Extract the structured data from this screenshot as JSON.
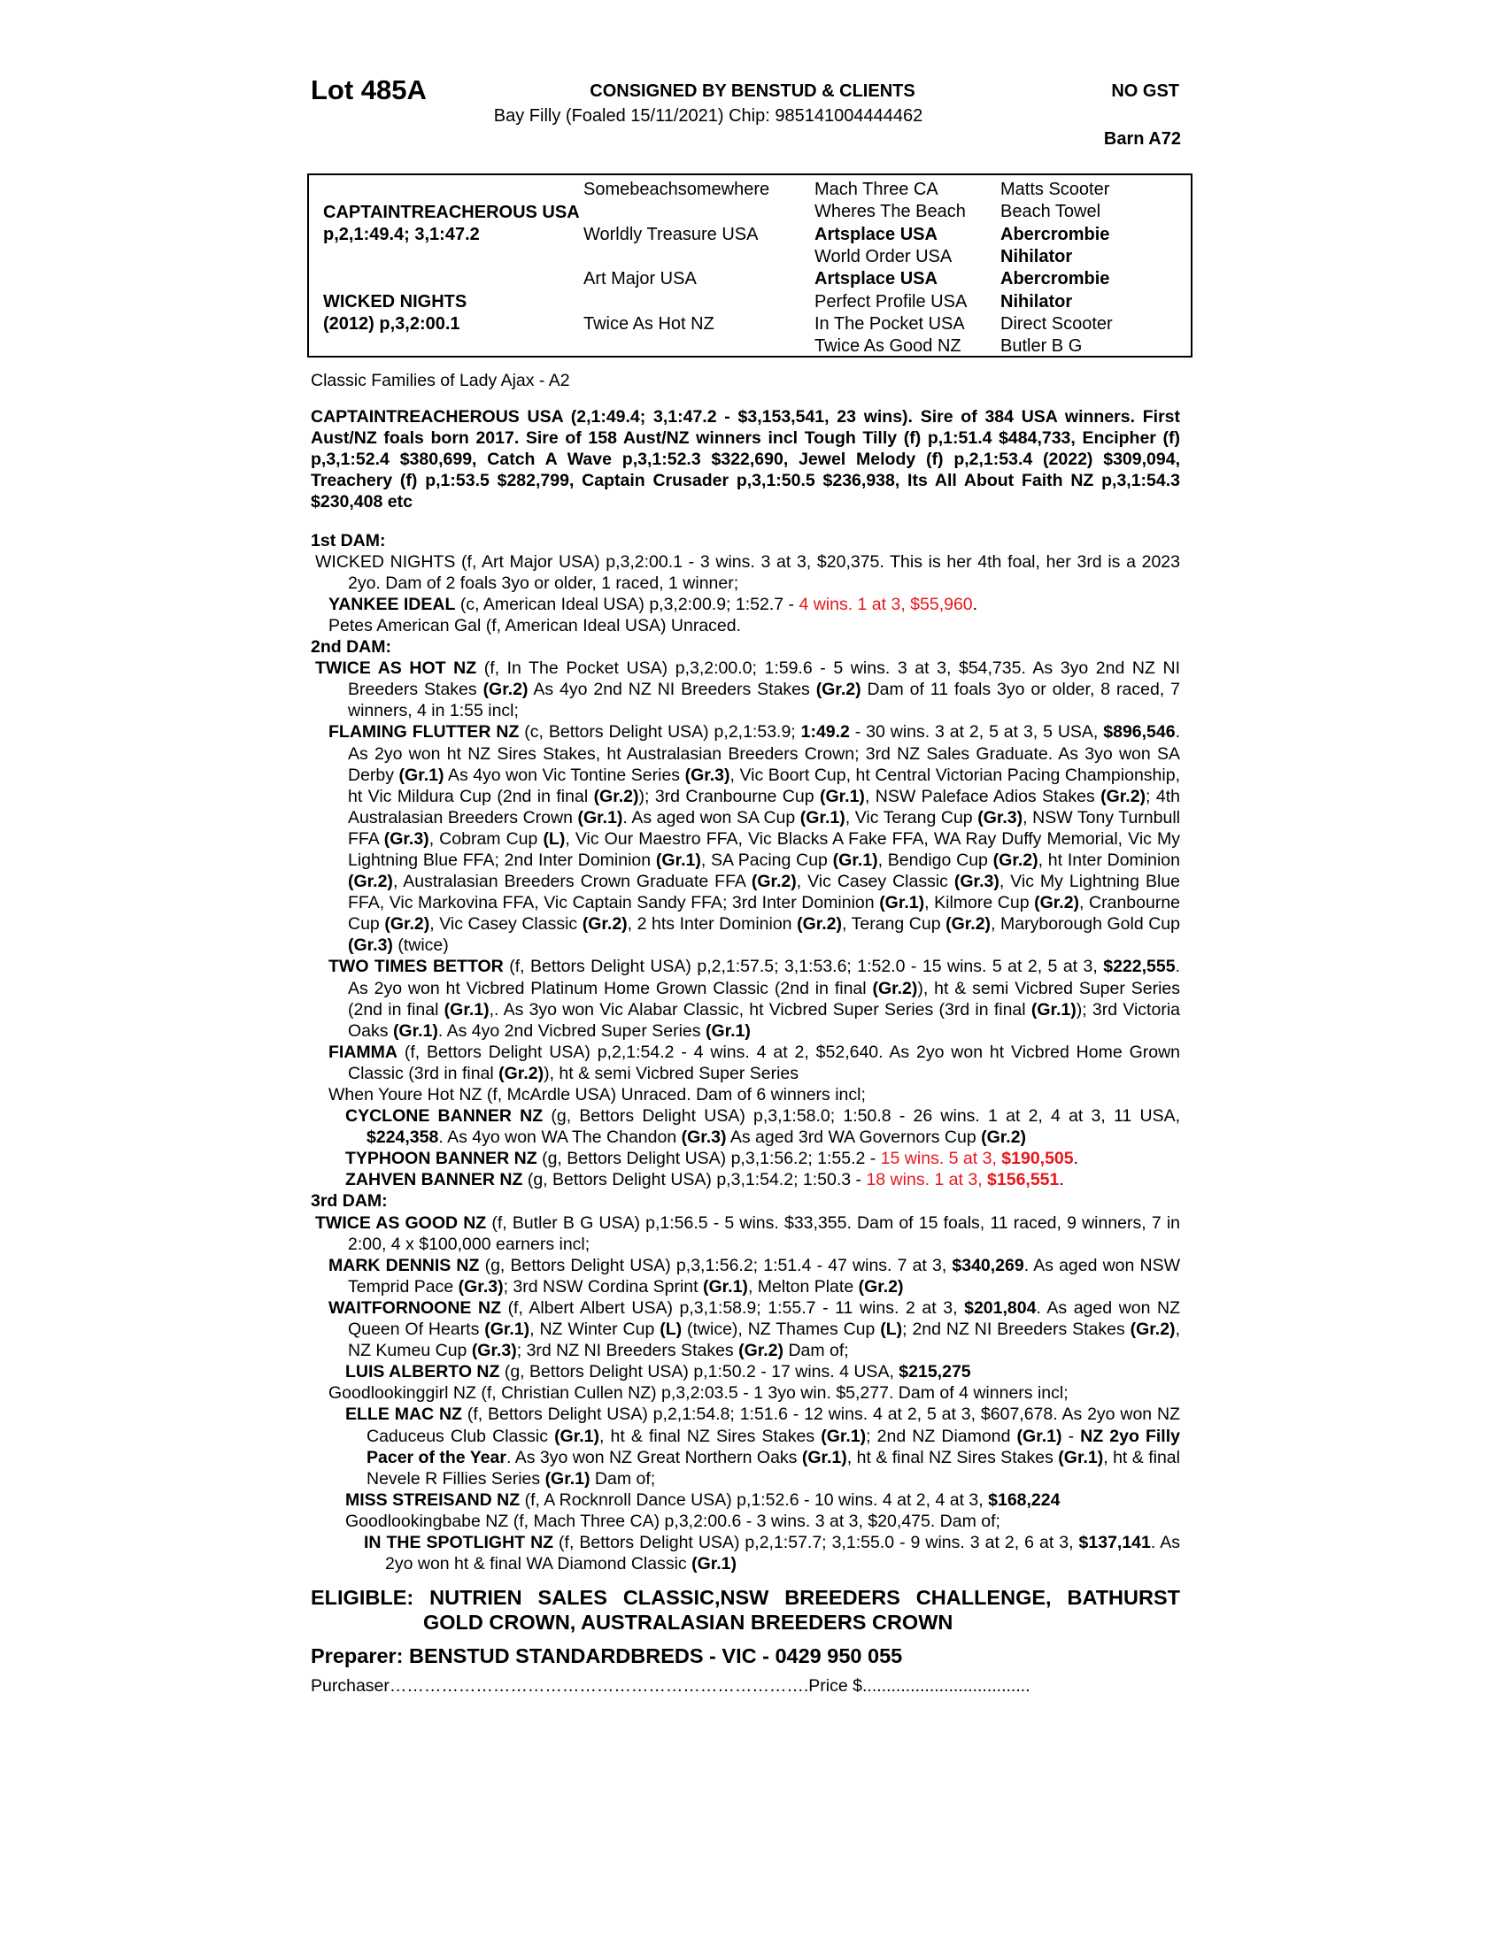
{
  "header": {
    "lot": "Lot 485A",
    "consigned": "CONSIGNED BY BENSTUD & CLIENTS",
    "description": "Bay Filly (Foaled 15/11/2021) Chip: 985141004444462",
    "gst": "NO GST",
    "barn": "Barn A72"
  },
  "pedigree": {
    "sire": {
      "name": "CAPTAINTREACHEROUS USA",
      "record": "p,2,1:49.4; 3,1:47.2"
    },
    "dam": {
      "name": "WICKED NIGHTS",
      "record": "(2012) p,3,2:00.1"
    },
    "gen2": [
      "Somebeachsomewhere",
      "Worldly Treasure USA",
      "Art Major USA",
      "Twice As Hot NZ"
    ],
    "gen3": [
      {
        "name": "Mach Three CA",
        "bold": false
      },
      {
        "name": "Wheres The Beach",
        "bold": false
      },
      {
        "name": "Artsplace USA",
        "bold": true
      },
      {
        "name": "World Order USA",
        "bold": false
      },
      {
        "name": "Artsplace USA",
        "bold": true
      },
      {
        "name": "Perfect Profile USA",
        "bold": false
      },
      {
        "name": "In The Pocket USA",
        "bold": false
      },
      {
        "name": "Twice As Good NZ",
        "bold": false
      }
    ],
    "gen4": [
      {
        "name": "Matts Scooter",
        "bold": false
      },
      {
        "name": "Beach Towel",
        "bold": false
      },
      {
        "name": "Abercrombie",
        "bold": true
      },
      {
        "name": "Nihilator",
        "bold": true
      },
      {
        "name": "Abercrombie",
        "bold": true
      },
      {
        "name": "Nihilator",
        "bold": true
      },
      {
        "name": "Direct Scooter",
        "bold": false
      },
      {
        "name": "Butler B G",
        "bold": false
      }
    ]
  },
  "family": "Classic Families of Lady Ajax - A2",
  "sire_paragraph": "CAPTAINTREACHEROUS USA (2,1:49.4; 3,1:47.2 - $3,153,541, 23 wins). Sire of 384 USA winners. First Aust/NZ foals born 2017. Sire of 158 Aust/NZ winners incl Tough Tilly (f) p,1:51.4 $484,733, Encipher (f) p,3,1:52.4 $380,699, Catch A Wave p,3,1:52.3 $322,690, Jewel Melody (f) p,2,1:53.4 (2022) $309,094, Treachery (f) p,1:53.5 $282,799, Captain Crusader p,3,1:50.5 $236,938, Its All About Faith NZ p,3,1:54.3 $230,408 etc",
  "sections": [
    {
      "heading": "1st DAM:",
      "entries": [
        {
          "level": 0,
          "segs": [
            {
              "t": "WICKED NIGHTS (f, Art Major USA) p,3,2:00.1 - 3 wins. 3 at 3, $20,375. This is her 4th foal, her 3rd is a 2023 2yo. Dam of 2 foals 3yo or older, 1 raced, 1 winner;",
              "s": ""
            }
          ]
        },
        {
          "level": 1,
          "segs": [
            {
              "t": "YANKEE IDEAL",
              "s": "b"
            },
            {
              "t": " (c, American Ideal USA) p,3,2:00.9; 1:52.7 - ",
              "s": ""
            },
            {
              "t": "4 wins. 1 at 3, $55,960",
              "s": "r"
            },
            {
              "t": ".",
              "s": ""
            }
          ]
        },
        {
          "level": 1,
          "segs": [
            {
              "t": "Petes American Gal (f, American Ideal USA) Unraced.",
              "s": ""
            }
          ]
        }
      ]
    },
    {
      "heading": "2nd DAM:",
      "entries": [
        {
          "level": 0,
          "segs": [
            {
              "t": "TWICE AS HOT NZ",
              "s": "b"
            },
            {
              "t": " (f, In The Pocket USA) p,3,2:00.0; 1:59.6 - 5 wins. 3 at 3, $54,735. As 3yo 2nd NZ NI Breeders Stakes ",
              "s": ""
            },
            {
              "t": "(Gr.2)",
              "s": "b"
            },
            {
              "t": " As 4yo 2nd NZ NI Breeders Stakes ",
              "s": ""
            },
            {
              "t": "(Gr.2)",
              "s": "b"
            },
            {
              "t": " Dam of 11 foals 3yo or older, 8 raced, 7 winners, 4 in 1:55 incl;",
              "s": ""
            }
          ]
        },
        {
          "level": 1,
          "segs": [
            {
              "t": "FLAMING FLUTTER NZ",
              "s": "b"
            },
            {
              "t": " (c, Bettors Delight USA) p,2,1:53.9; ",
              "s": ""
            },
            {
              "t": "1:49.2",
              "s": "b"
            },
            {
              "t": " - 30 wins. 3 at 2, 5 at 3, 5 USA, ",
              "s": ""
            },
            {
              "t": "$896,546",
              "s": "b"
            },
            {
              "t": ". As 2yo won ht NZ Sires Stakes, ht Australasian Breeders Crown; 3rd NZ Sales Graduate. As 3yo won SA Derby ",
              "s": ""
            },
            {
              "t": "(Gr.1)",
              "s": "b"
            },
            {
              "t": " As 4yo won Vic Tontine Series ",
              "s": ""
            },
            {
              "t": "(Gr.3)",
              "s": "b"
            },
            {
              "t": ", Vic Boort Cup, ht Central Victorian Pacing Championship, ht Vic Mildura Cup (2nd in final ",
              "s": ""
            },
            {
              "t": "(Gr.2)",
              "s": "b"
            },
            {
              "t": "); 3rd Cranbourne Cup ",
              "s": ""
            },
            {
              "t": "(Gr.1)",
              "s": "b"
            },
            {
              "t": ", NSW Paleface Adios Stakes ",
              "s": ""
            },
            {
              "t": "(Gr.2)",
              "s": "b"
            },
            {
              "t": "; 4th Australasian Breeders Crown ",
              "s": ""
            },
            {
              "t": "(Gr.1)",
              "s": "b"
            },
            {
              "t": ". As aged won SA Cup ",
              "s": ""
            },
            {
              "t": "(Gr.1)",
              "s": "b"
            },
            {
              "t": ", Vic Terang Cup ",
              "s": ""
            },
            {
              "t": "(Gr.3)",
              "s": "b"
            },
            {
              "t": ", NSW Tony Turnbull FFA ",
              "s": ""
            },
            {
              "t": "(Gr.3)",
              "s": "b"
            },
            {
              "t": ", Cobram Cup ",
              "s": ""
            },
            {
              "t": "(L)",
              "s": "b"
            },
            {
              "t": ", Vic Our Maestro FFA, Vic Blacks A Fake FFA, WA Ray Duffy Memorial, Vic My Lightning Blue FFA; 2nd Inter Dominion ",
              "s": ""
            },
            {
              "t": "(Gr.1)",
              "s": "b"
            },
            {
              "t": ", SA Pacing Cup ",
              "s": ""
            },
            {
              "t": "(Gr.1)",
              "s": "b"
            },
            {
              "t": ", Bendigo Cup ",
              "s": ""
            },
            {
              "t": "(Gr.2)",
              "s": "b"
            },
            {
              "t": ", ht Inter Dominion ",
              "s": ""
            },
            {
              "t": "(Gr.2)",
              "s": "b"
            },
            {
              "t": ", Australasian Breeders Crown Graduate FFA ",
              "s": ""
            },
            {
              "t": "(Gr.2)",
              "s": "b"
            },
            {
              "t": ", Vic Casey Classic ",
              "s": ""
            },
            {
              "t": "(Gr.3)",
              "s": "b"
            },
            {
              "t": ", Vic My Lightning Blue FFA, Vic Markovina FFA, Vic Captain Sandy FFA; 3rd Inter Dominion ",
              "s": ""
            },
            {
              "t": "(Gr.1)",
              "s": "b"
            },
            {
              "t": ", Kilmore Cup ",
              "s": ""
            },
            {
              "t": "(Gr.2)",
              "s": "b"
            },
            {
              "t": ", Cranbourne Cup ",
              "s": ""
            },
            {
              "t": "(Gr.2)",
              "s": "b"
            },
            {
              "t": ", Vic Casey Classic ",
              "s": ""
            },
            {
              "t": "(Gr.2)",
              "s": "b"
            },
            {
              "t": ", 2 hts Inter Dominion ",
              "s": ""
            },
            {
              "t": "(Gr.2)",
              "s": "b"
            },
            {
              "t": ", Terang Cup ",
              "s": ""
            },
            {
              "t": "(Gr.2)",
              "s": "b"
            },
            {
              "t": ", Maryborough Gold Cup ",
              "s": ""
            },
            {
              "t": "(Gr.3)",
              "s": "b"
            },
            {
              "t": " (twice)",
              "s": ""
            }
          ]
        },
        {
          "level": 1,
          "segs": [
            {
              "t": "TWO TIMES BETTOR",
              "s": "b"
            },
            {
              "t": " (f, Bettors Delight USA) p,2,1:57.5; 3,1:53.6; 1:52.0 - 15 wins. 5 at 2, 5 at 3, ",
              "s": ""
            },
            {
              "t": "$222,555",
              "s": "b"
            },
            {
              "t": ". As 2yo won ht Vicbred Platinum Home Grown Classic (2nd in final ",
              "s": ""
            },
            {
              "t": "(Gr.2)",
              "s": "b"
            },
            {
              "t": "), ht & semi Vicbred Super Series (2nd in final ",
              "s": ""
            },
            {
              "t": "(Gr.1)",
              "s": "b"
            },
            {
              "t": ",. As 3yo won Vic Alabar Classic, ht Vicbred Super Series (3rd in final ",
              "s": ""
            },
            {
              "t": "(Gr.1)",
              "s": "b"
            },
            {
              "t": "); 3rd Victoria Oaks ",
              "s": ""
            },
            {
              "t": "(Gr.1)",
              "s": "b"
            },
            {
              "t": ". As 4yo 2nd Vicbred Super Series ",
              "s": ""
            },
            {
              "t": "(Gr.1)",
              "s": "b"
            }
          ]
        },
        {
          "level": 1,
          "segs": [
            {
              "t": "FIAMMA",
              "s": "b"
            },
            {
              "t": " (f, Bettors Delight USA) p,2,1:54.2 - 4 wins. 4 at 2, $52,640. As 2yo won ht Vicbred Home Grown Classic (3rd in final ",
              "s": ""
            },
            {
              "t": "(Gr.2)",
              "s": "b"
            },
            {
              "t": "), ht & semi Vicbred Super Series",
              "s": ""
            }
          ]
        },
        {
          "level": 1,
          "segs": [
            {
              "t": "When Youre Hot NZ (f, McArdle USA) Unraced. Dam of 6 winners incl;",
              "s": ""
            }
          ]
        },
        {
          "level": 2,
          "segs": [
            {
              "t": "CYCLONE BANNER NZ",
              "s": "b"
            },
            {
              "t": " (g, Bettors Delight USA) p,3,1:58.0; 1:50.8 - 26 wins. 1 at 2, 4 at 3, 11 USA, ",
              "s": ""
            },
            {
              "t": "$224,358",
              "s": "b"
            },
            {
              "t": ". As 4yo won WA The Chandon ",
              "s": ""
            },
            {
              "t": "(Gr.3)",
              "s": "b"
            },
            {
              "t": " As aged 3rd WA Governors Cup ",
              "s": ""
            },
            {
              "t": "(Gr.2)",
              "s": "b"
            }
          ]
        },
        {
          "level": 2,
          "segs": [
            {
              "t": "TYPHOON BANNER NZ",
              "s": "b"
            },
            {
              "t": " (g, Bettors Delight USA) p,3,1:56.2; 1:55.2 - ",
              "s": ""
            },
            {
              "t": "15 wins. 5 at 3, ",
              "s": "r"
            },
            {
              "t": "$190,505",
              "s": "rb"
            },
            {
              "t": ".",
              "s": ""
            }
          ]
        },
        {
          "level": 2,
          "segs": [
            {
              "t": "ZAHVEN BANNER NZ",
              "s": "b"
            },
            {
              "t": " (g, Bettors Delight USA) p,3,1:54.2; 1:50.3 - ",
              "s": ""
            },
            {
              "t": "18 wins. 1 at 3, ",
              "s": "r"
            },
            {
              "t": "$156,551",
              "s": "rb"
            },
            {
              "t": ".",
              "s": ""
            }
          ]
        }
      ]
    },
    {
      "heading": "3rd DAM:",
      "entries": [
        {
          "level": 0,
          "segs": [
            {
              "t": "TWICE AS GOOD NZ",
              "s": "b"
            },
            {
              "t": " (f, Butler B G USA) p,1:56.5 - 5 wins. $33,355. Dam of 15 foals, 11 raced, 9 winners, 7 in 2:00, 4 x $100,000 earners incl;",
              "s": ""
            }
          ]
        },
        {
          "level": 1,
          "segs": [
            {
              "t": "MARK DENNIS NZ",
              "s": "b"
            },
            {
              "t": " (g, Bettors Delight USA) p,3,1:56.2; 1:51.4 - 47 wins. 7 at 3, ",
              "s": ""
            },
            {
              "t": "$340,269",
              "s": "b"
            },
            {
              "t": ". As aged won NSW Temprid Pace ",
              "s": ""
            },
            {
              "t": "(Gr.3)",
              "s": "b"
            },
            {
              "t": "; 3rd NSW Cordina Sprint ",
              "s": ""
            },
            {
              "t": "(Gr.1)",
              "s": "b"
            },
            {
              "t": ", Melton Plate ",
              "s": ""
            },
            {
              "t": "(Gr.2)",
              "s": "b"
            }
          ]
        },
        {
          "level": 1,
          "segs": [
            {
              "t": "WAITFORNOONE NZ",
              "s": "b"
            },
            {
              "t": " (f, Albert Albert USA) p,3,1:58.9; 1:55.7 - 11 wins. 2 at 3, ",
              "s": ""
            },
            {
              "t": "$201,804",
              "s": "b"
            },
            {
              "t": ". As aged won NZ Queen Of Hearts ",
              "s": ""
            },
            {
              "t": "(Gr.1)",
              "s": "b"
            },
            {
              "t": ", NZ Winter Cup ",
              "s": ""
            },
            {
              "t": "(L)",
              "s": "b"
            },
            {
              "t": " (twice), NZ Thames Cup ",
              "s": ""
            },
            {
              "t": "(L)",
              "s": "b"
            },
            {
              "t": "; 2nd NZ NI Breeders Stakes ",
              "s": ""
            },
            {
              "t": "(Gr.2)",
              "s": "b"
            },
            {
              "t": ", NZ Kumeu Cup ",
              "s": ""
            },
            {
              "t": "(Gr.3)",
              "s": "b"
            },
            {
              "t": "; 3rd NZ NI Breeders Stakes ",
              "s": ""
            },
            {
              "t": "(Gr.2)",
              "s": "b"
            },
            {
              "t": " Dam of;",
              "s": ""
            }
          ]
        },
        {
          "level": 2,
          "segs": [
            {
              "t": "LUIS ALBERTO NZ",
              "s": "b"
            },
            {
              "t": " (g, Bettors Delight USA) p,1:50.2 - 17 wins. 4 USA, ",
              "s": ""
            },
            {
              "t": "$215,275",
              "s": "b"
            }
          ]
        },
        {
          "level": 1,
          "segs": [
            {
              "t": "Goodlookinggirl NZ (f, Christian Cullen NZ) p,3,2:03.5 - 1 3yo win. $5,277. Dam of 4 winners incl;",
              "s": ""
            }
          ]
        },
        {
          "level": 2,
          "segs": [
            {
              "t": "ELLE MAC NZ",
              "s": "b"
            },
            {
              "t": " (f, Bettors Delight USA) p,2,1:54.8; 1:51.6 - 12 wins. 4 at 2, 5 at 3, $607,678. As 2yo won NZ Caduceus Club Classic ",
              "s": ""
            },
            {
              "t": "(Gr.1)",
              "s": "b"
            },
            {
              "t": ", ht & final NZ Sires Stakes ",
              "s": ""
            },
            {
              "t": "(Gr.1)",
              "s": "b"
            },
            {
              "t": "; 2nd NZ Diamond ",
              "s": ""
            },
            {
              "t": "(Gr.1)",
              "s": "b"
            },
            {
              "t": " - ",
              "s": ""
            },
            {
              "t": "NZ 2yo Filly Pacer of the Year",
              "s": "b"
            },
            {
              "t": ". As 3yo won NZ Great Northern Oaks ",
              "s": ""
            },
            {
              "t": "(Gr.1)",
              "s": "b"
            },
            {
              "t": ", ht & final NZ Sires Stakes ",
              "s": ""
            },
            {
              "t": "(Gr.1)",
              "s": "b"
            },
            {
              "t": ", ht & final Nevele R Fillies Series ",
              "s": ""
            },
            {
              "t": "(Gr.1)",
              "s": "b"
            },
            {
              "t": " Dam of;",
              "s": ""
            }
          ]
        },
        {
          "level": 2,
          "segs": [
            {
              "t": "MISS STREISAND NZ",
              "s": "b"
            },
            {
              "t": " (f, A Rocknroll Dance USA) p,1:52.6 - 10 wins. 4 at 2, 4 at 3, ",
              "s": ""
            },
            {
              "t": "$168,224",
              "s": "b"
            }
          ]
        },
        {
          "level": 2,
          "segs": [
            {
              "t": "Goodlookingbabe NZ (f, Mach Three CA) p,3,2:00.6 - 3 wins. 3 at 3, $20,475. Dam of;",
              "s": ""
            }
          ]
        },
        {
          "level": 3,
          "segs": [
            {
              "t": "IN THE SPOTLIGHT NZ",
              "s": "b"
            },
            {
              "t": " (f, Bettors Delight USA) p,2,1:57.7; 3,1:55.0 - 9 wins. 3 at 2, 6 at 3, ",
              "s": ""
            },
            {
              "t": "$137,141",
              "s": "b"
            },
            {
              "t": ". As 2yo won ht & final WA Diamond Classic ",
              "s": ""
            },
            {
              "t": "(Gr.1)",
              "s": "b"
            }
          ]
        }
      ]
    }
  ],
  "eligible": "ELIGIBLE: NUTRIEN SALES CLASSIC,NSW BREEDERS CHALLENGE, BATHURST GOLD CROWN, AUSTRALASIAN BREEDERS CROWN",
  "preparer": "Preparer: BENSTUD STANDARDBREDS - VIC - 0429 950 055",
  "purchaser": "Purchaser……………………………………………………………….Price $...................................",
  "colors": {
    "highlight": "#e8161b",
    "text": "#000000"
  }
}
